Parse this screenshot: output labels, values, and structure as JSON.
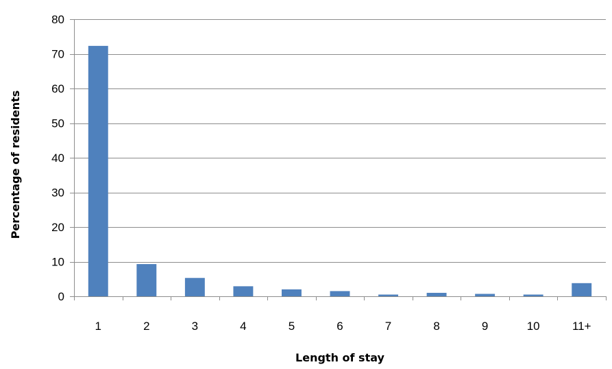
{
  "chart_data": {
    "type": "bar",
    "categories": [
      "1",
      "2",
      "3",
      "4",
      "5",
      "6",
      "7",
      "8",
      "9",
      "10",
      "11+"
    ],
    "values": [
      72.3,
      9.3,
      5.3,
      2.9,
      2.0,
      1.5,
      0.5,
      1.0,
      0.7,
      0.5,
      3.8
    ],
    "title": "",
    "xlabel": "Length of stay",
    "ylabel": "Percentage of residents",
    "ylim": [
      0,
      80
    ],
    "yticks": [
      0,
      10,
      20,
      30,
      40,
      50,
      60,
      70,
      80
    ],
    "grid": true,
    "legend": "none",
    "bar_color": "#4f81bd"
  }
}
